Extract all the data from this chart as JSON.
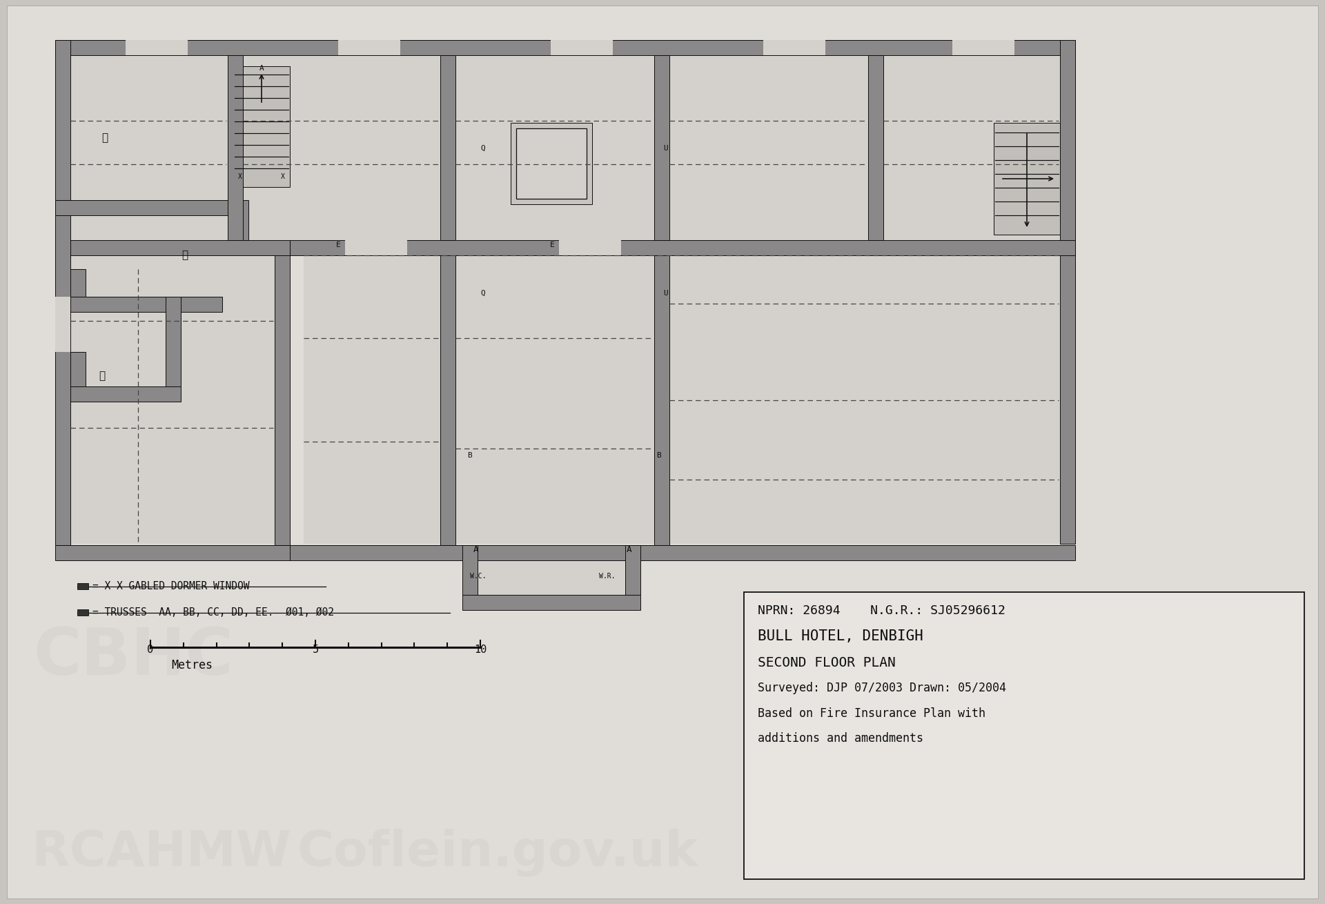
{
  "bg_color": "#c8c5c0",
  "paper_color": "#e0ddd8",
  "wall_fill": "#8a8888",
  "wall_edge": "#0d0d0d",
  "floor_fill": "#d4d1cc",
  "info_lines": [
    "NPRN: 26894    N.G.R.: SJ05296612",
    "BULL HOTEL, DENBIGH",
    "SECOND FLOOR PLAN",
    "Surveyed: DJP 07/2003 Drawn: 05/2004",
    "Based on Fire Insurance Plan with",
    "additions and amendments"
  ],
  "legend1": "= X X GABLED DORMER WINDOW",
  "legend2": "= TRUSSES  AA, BB, CC, DD, EE.  Ø01, Ø02",
  "scale_label": "Metres"
}
